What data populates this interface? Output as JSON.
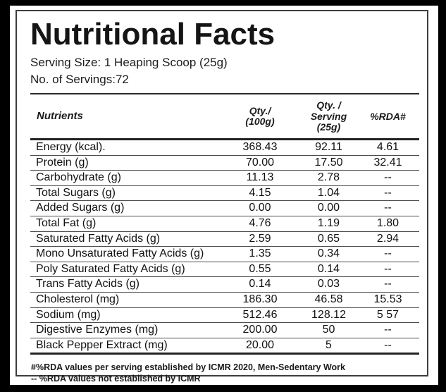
{
  "title": "Nutritional Facts",
  "serving_size_label": "Serving Size: 1 Heaping Scoop (25g)",
  "servings_label": "No. of Servings:72",
  "table": {
    "headers": {
      "nutrients": "Nutrients",
      "per_100g": {
        "line1": "Qty./",
        "line2": "(100g)"
      },
      "per_serving": {
        "line1": "Qty. /",
        "line2": "Serving",
        "line3": "(25g)"
      },
      "rda": "%RDA#"
    },
    "rows": [
      {
        "name": "Energy (kcal).",
        "per_100g": "368.43",
        "per_serving": "92.11",
        "rda": "4.61"
      },
      {
        "name": "Protein (g)",
        "per_100g": "70.00",
        "per_serving": "17.50",
        "rda": "32.41"
      },
      {
        "name": "Carbohydrate (g)",
        "per_100g": "11.13",
        "per_serving": "2.78",
        "rda": "--"
      },
      {
        "name": "Total Sugars (g)",
        "per_100g": "4.15",
        "per_serving": "1.04",
        "rda": "--"
      },
      {
        "name": "Added Sugars (g)",
        "per_100g": "0.00",
        "per_serving": "0.00",
        "rda": "--"
      },
      {
        "name": "Total Fat (g)",
        "per_100g": "4.76",
        "per_serving": "1.19",
        "rda": "1.80"
      },
      {
        "name": "Saturated Fatty Acids (g)",
        "per_100g": "2.59",
        "per_serving": "0.65",
        "rda": "2.94"
      },
      {
        "name": "Mono Unsaturated Fatty Acids (g)",
        "per_100g": "1.35",
        "per_serving": "0.34",
        "rda": "--"
      },
      {
        "name": "Poly Saturated Fatty Acids (g)",
        "per_100g": "0.55",
        "per_serving": "0.14",
        "rda": "--"
      },
      {
        "name": "Trans Fatty Acids (g)",
        "per_100g": "0.14",
        "per_serving": "0.03",
        "rda": "--"
      },
      {
        "name": "Cholesterol (mg)",
        "per_100g": "186.30",
        "per_serving": "46.58",
        "rda": "15.53"
      },
      {
        "name": "Sodium (mg)",
        "per_100g": "512.46",
        "per_serving": "128.12",
        "rda": "5 57"
      },
      {
        "name": "Digestive Enzymes (mg)",
        "per_100g": "200.00",
        "per_serving": "50",
        "rda": "--"
      },
      {
        "name": "Black Pepper Extract (mg)",
        "per_100g": "20.00",
        "per_serving": "5",
        "rda": "--"
      }
    ]
  },
  "footnotes": [
    "#%RDA values per serving established by ICMR 2020, Men-Sedentary Work",
    "-- %RDA values not established by ICMR"
  ],
  "colors": {
    "frame": "#000000",
    "background": "#ffffff",
    "text": "#1a1a1a",
    "border": "#3d3d3d",
    "thick_rule": "#222222",
    "thin_rule": "#4d4d4d"
  }
}
